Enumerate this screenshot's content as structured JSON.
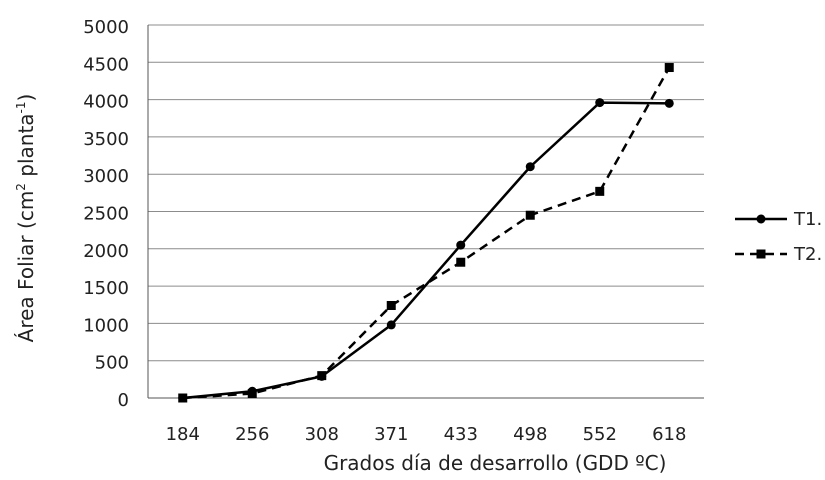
{
  "chart_data": {
    "type": "line",
    "title": "",
    "xlabel": "Grados día de desarrollo (GDD ºC)",
    "ylabel_main": "Área Foliar (cm",
    "ylabel_sup1": "2",
    "ylabel_mid": " planta",
    "ylabel_sup2": "-1",
    "ylabel_end": ")",
    "categories": [
      "184",
      "256",
      "308",
      "371",
      "433",
      "498",
      "552",
      "618"
    ],
    "ylim": [
      0,
      5000
    ],
    "yticks": [
      0,
      500,
      1000,
      1500,
      2000,
      2500,
      3000,
      3500,
      4000,
      4500,
      5000
    ],
    "grid": true,
    "legend_position": "right",
    "series": [
      {
        "name": "T1.",
        "values": [
          0,
          90,
          290,
          980,
          2050,
          3100,
          3960,
          3950
        ],
        "color": "#000000",
        "dash": "solid",
        "marker": "circle"
      },
      {
        "name": "T2.",
        "values": [
          0,
          60,
          300,
          1240,
          1820,
          2450,
          2770,
          4430
        ],
        "color": "#000000",
        "dash": "dashed",
        "marker": "square"
      }
    ]
  }
}
